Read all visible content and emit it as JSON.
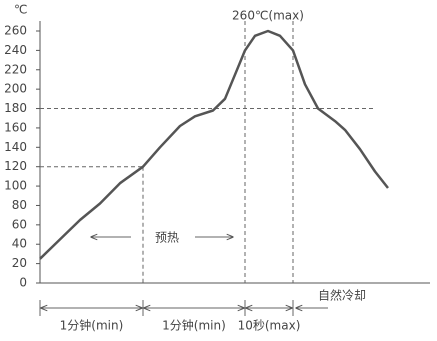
{
  "chart_data": {
    "type": "line",
    "y_unit": "℃",
    "x": [
      0,
      20,
      40,
      60,
      80,
      103,
      120,
      140,
      155,
      173,
      185,
      197,
      205,
      215,
      228,
      240,
      253,
      265,
      278,
      295,
      305,
      320,
      335,
      348
    ],
    "values": [
      25,
      45,
      65,
      82,
      103,
      120,
      140,
      162,
      172,
      178,
      190,
      220,
      240,
      255,
      260,
      255,
      240,
      205,
      180,
      167,
      158,
      138,
      115,
      98
    ],
    "color": "#555555",
    "xlim": [
      0,
      390
    ],
    "ylim": [
      0,
      260
    ],
    "yticks": [
      0,
      20,
      40,
      60,
      80,
      100,
      120,
      140,
      160,
      180,
      200,
      220,
      240,
      260
    ],
    "peak_label": "260℃(max)",
    "preheat_label": "预热",
    "cooling_label": "自然冷却",
    "reference_lines": [
      {
        "y": 120,
        "x_end": 103
      },
      {
        "y": 180,
        "x_end": 335
      }
    ],
    "segments": [
      {
        "label": "1分钟(min)",
        "from": 0,
        "to": 103
      },
      {
        "label": "1分钟(min)",
        "from": 103,
        "to": 205
      },
      {
        "label": "10秒(max)",
        "from": 205,
        "to": 253
      }
    ]
  }
}
